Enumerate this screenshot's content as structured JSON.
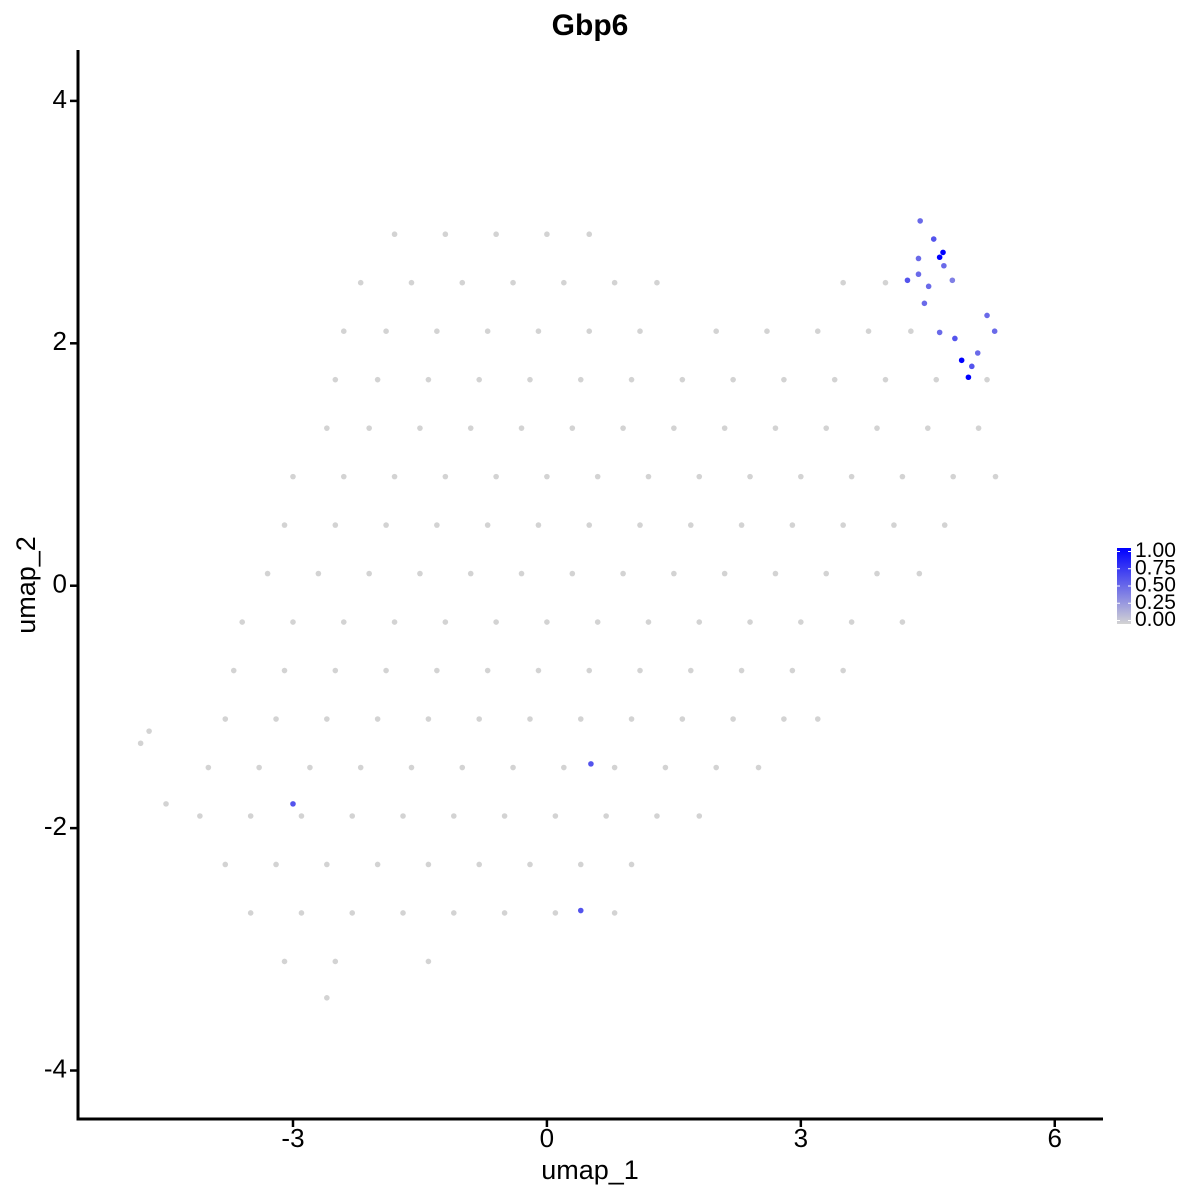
{
  "chart_data": {
    "type": "scatter",
    "title": "Gbp6",
    "x_label": "umap_1",
    "y_label": "umap_2",
    "xlim": [
      -5.54,
      6.57
    ],
    "ylim": [
      -4.4,
      4.42
    ],
    "xticks": [
      -3,
      0,
      3,
      6
    ],
    "yticks": [
      -4,
      -2,
      0,
      2,
      4
    ],
    "low_color": "#d3d3d3",
    "high_color": "#0000ff",
    "clim": [
      0,
      1
    ],
    "cticks": [
      {
        "value": 1,
        "label": "1.00"
      },
      {
        "value": 0.75,
        "label": "0.75"
      },
      {
        "value": 0.5,
        "label": "0.50"
      },
      {
        "value": 0.25,
        "label": "0.25"
      },
      {
        "value": 0,
        "label": "0.00"
      }
    ],
    "points": [
      [
        -1.8,
        2.9,
        0
      ],
      [
        -1.2,
        2.9,
        0
      ],
      [
        -0.6,
        2.9,
        0
      ],
      [
        0,
        2.9,
        0
      ],
      [
        0.5,
        2.9,
        0
      ],
      [
        -2.2,
        2.5,
        0
      ],
      [
        -1.6,
        2.5,
        0
      ],
      [
        -1,
        2.5,
        0
      ],
      [
        -0.4,
        2.5,
        0
      ],
      [
        0.2,
        2.5,
        0
      ],
      [
        0.8,
        2.5,
        0
      ],
      [
        1.3,
        2.5,
        0
      ],
      [
        3.5,
        2.5,
        0
      ],
      [
        4.0,
        2.5,
        0
      ],
      [
        -2.4,
        2.1,
        0
      ],
      [
        -1.9,
        2.1,
        0
      ],
      [
        -1.3,
        2.1,
        0
      ],
      [
        -0.7,
        2.1,
        0
      ],
      [
        -0.1,
        2.1,
        0
      ],
      [
        0.5,
        2.1,
        0
      ],
      [
        1.1,
        2.1,
        0
      ],
      [
        2.0,
        2.1,
        0
      ],
      [
        2.6,
        2.1,
        0
      ],
      [
        3.2,
        2.1,
        0
      ],
      [
        3.8,
        2.1,
        0
      ],
      [
        4.3,
        2.1,
        0
      ],
      [
        -2.5,
        1.7,
        0
      ],
      [
        -2.0,
        1.7,
        0
      ],
      [
        -1.4,
        1.7,
        0
      ],
      [
        -0.8,
        1.7,
        0
      ],
      [
        -0.2,
        1.7,
        0
      ],
      [
        0.4,
        1.7,
        0
      ],
      [
        1.0,
        1.7,
        0
      ],
      [
        1.6,
        1.7,
        0
      ],
      [
        2.2,
        1.7,
        0
      ],
      [
        2.8,
        1.7,
        0
      ],
      [
        3.4,
        1.7,
        0
      ],
      [
        4.0,
        1.7,
        0
      ],
      [
        4.6,
        1.7,
        0
      ],
      [
        5.2,
        1.7,
        0
      ],
      [
        -2.6,
        1.3,
        0
      ],
      [
        -2.1,
        1.3,
        0
      ],
      [
        -1.5,
        1.3,
        0
      ],
      [
        -0.9,
        1.3,
        0
      ],
      [
        -0.3,
        1.3,
        0
      ],
      [
        0.3,
        1.3,
        0
      ],
      [
        0.9,
        1.3,
        0
      ],
      [
        1.5,
        1.3,
        0
      ],
      [
        2.1,
        1.3,
        0
      ],
      [
        2.7,
        1.3,
        0
      ],
      [
        3.3,
        1.3,
        0
      ],
      [
        3.9,
        1.3,
        0
      ],
      [
        4.5,
        1.3,
        0
      ],
      [
        5.1,
        1.3,
        0
      ],
      [
        -3.0,
        0.9,
        0
      ],
      [
        -2.4,
        0.9,
        0
      ],
      [
        -1.8,
        0.9,
        0
      ],
      [
        -1.2,
        0.9,
        0
      ],
      [
        -0.6,
        0.9,
        0
      ],
      [
        0,
        0.9,
        0
      ],
      [
        0.6,
        0.9,
        0
      ],
      [
        1.2,
        0.9,
        0
      ],
      [
        1.8,
        0.9,
        0
      ],
      [
        2.4,
        0.9,
        0
      ],
      [
        3.0,
        0.9,
        0
      ],
      [
        3.6,
        0.9,
        0
      ],
      [
        4.2,
        0.9,
        0
      ],
      [
        4.8,
        0.9,
        0
      ],
      [
        5.3,
        0.9,
        0
      ],
      [
        -3.1,
        0.5,
        0
      ],
      [
        -2.5,
        0.5,
        0
      ],
      [
        -1.9,
        0.5,
        0
      ],
      [
        -1.3,
        0.5,
        0
      ],
      [
        -0.7,
        0.5,
        0
      ],
      [
        -0.1,
        0.5,
        0
      ],
      [
        0.5,
        0.5,
        0
      ],
      [
        1.1,
        0.5,
        0
      ],
      [
        1.7,
        0.5,
        0
      ],
      [
        2.3,
        0.5,
        0
      ],
      [
        2.9,
        0.5,
        0
      ],
      [
        3.5,
        0.5,
        0
      ],
      [
        4.1,
        0.5,
        0
      ],
      [
        4.7,
        0.5,
        0
      ],
      [
        -3.3,
        0.1,
        0
      ],
      [
        -2.7,
        0.1,
        0
      ],
      [
        -2.1,
        0.1,
        0
      ],
      [
        -1.5,
        0.1,
        0
      ],
      [
        -0.9,
        0.1,
        0
      ],
      [
        -0.3,
        0.1,
        0
      ],
      [
        0.3,
        0.1,
        0
      ],
      [
        0.9,
        0.1,
        0
      ],
      [
        1.5,
        0.1,
        0
      ],
      [
        2.1,
        0.1,
        0
      ],
      [
        2.7,
        0.1,
        0
      ],
      [
        3.3,
        0.1,
        0
      ],
      [
        3.9,
        0.1,
        0
      ],
      [
        4.4,
        0.1,
        0
      ],
      [
        -3.6,
        -0.3,
        0
      ],
      [
        -3.0,
        -0.3,
        0
      ],
      [
        -2.4,
        -0.3,
        0
      ],
      [
        -1.8,
        -0.3,
        0
      ],
      [
        -1.2,
        -0.3,
        0
      ],
      [
        -0.6,
        -0.3,
        0
      ],
      [
        0,
        -0.3,
        0
      ],
      [
        0.6,
        -0.3,
        0
      ],
      [
        1.2,
        -0.3,
        0
      ],
      [
        1.8,
        -0.3,
        0
      ],
      [
        2.4,
        -0.3,
        0
      ],
      [
        3.0,
        -0.3,
        0
      ],
      [
        3.6,
        -0.3,
        0
      ],
      [
        4.2,
        -0.3,
        0
      ],
      [
        -3.7,
        -0.7,
        0
      ],
      [
        -3.1,
        -0.7,
        0
      ],
      [
        -2.5,
        -0.7,
        0
      ],
      [
        -1.9,
        -0.7,
        0
      ],
      [
        -1.3,
        -0.7,
        0
      ],
      [
        -0.7,
        -0.7,
        0
      ],
      [
        -0.1,
        -0.7,
        0
      ],
      [
        0.5,
        -0.7,
        0
      ],
      [
        1.1,
        -0.7,
        0
      ],
      [
        1.7,
        -0.7,
        0
      ],
      [
        2.3,
        -0.7,
        0
      ],
      [
        2.9,
        -0.7,
        0
      ],
      [
        3.5,
        -0.7,
        0
      ],
      [
        -3.8,
        -1.1,
        0
      ],
      [
        -3.2,
        -1.1,
        0
      ],
      [
        -2.6,
        -1.1,
        0
      ],
      [
        -2.0,
        -1.1,
        0
      ],
      [
        -1.4,
        -1.1,
        0
      ],
      [
        -0.8,
        -1.1,
        0
      ],
      [
        -0.2,
        -1.1,
        0
      ],
      [
        0.4,
        -1.1,
        0
      ],
      [
        1.0,
        -1.1,
        0
      ],
      [
        1.6,
        -1.1,
        0
      ],
      [
        2.2,
        -1.1,
        0
      ],
      [
        2.8,
        -1.1,
        0
      ],
      [
        3.2,
        -1.1,
        0
      ],
      [
        -4.0,
        -1.5,
        0
      ],
      [
        -3.4,
        -1.5,
        0
      ],
      [
        -2.8,
        -1.5,
        0
      ],
      [
        -2.2,
        -1.5,
        0
      ],
      [
        -1.6,
        -1.5,
        0
      ],
      [
        -1.0,
        -1.5,
        0
      ],
      [
        -0.4,
        -1.5,
        0
      ],
      [
        0.2,
        -1.5,
        0
      ],
      [
        0.8,
        -1.5,
        0
      ],
      [
        1.4,
        -1.5,
        0
      ],
      [
        2.0,
        -1.5,
        0
      ],
      [
        2.5,
        -1.5,
        0
      ],
      [
        -4.1,
        -1.9,
        0
      ],
      [
        -3.5,
        -1.9,
        0
      ],
      [
        -2.9,
        -1.9,
        0
      ],
      [
        -2.3,
        -1.9,
        0
      ],
      [
        -1.7,
        -1.9,
        0
      ],
      [
        -1.1,
        -1.9,
        0
      ],
      [
        -0.5,
        -1.9,
        0
      ],
      [
        0.1,
        -1.9,
        0
      ],
      [
        0.7,
        -1.9,
        0
      ],
      [
        1.3,
        -1.9,
        0
      ],
      [
        1.8,
        -1.9,
        0
      ],
      [
        -3.8,
        -2.3,
        0
      ],
      [
        -3.2,
        -2.3,
        0
      ],
      [
        -2.6,
        -2.3,
        0
      ],
      [
        -2.0,
        -2.3,
        0
      ],
      [
        -1.4,
        -2.3,
        0
      ],
      [
        -0.8,
        -2.3,
        0
      ],
      [
        -0.2,
        -2.3,
        0
      ],
      [
        0.4,
        -2.3,
        0
      ],
      [
        1.0,
        -2.3,
        0
      ],
      [
        -3.5,
        -2.7,
        0
      ],
      [
        -2.9,
        -2.7,
        0
      ],
      [
        -2.3,
        -2.7,
        0
      ],
      [
        -1.7,
        -2.7,
        0
      ],
      [
        -1.1,
        -2.7,
        0
      ],
      [
        -0.5,
        -2.7,
        0
      ],
      [
        0.1,
        -2.7,
        0
      ],
      [
        0.8,
        -2.7,
        0
      ],
      [
        -3.1,
        -3.1,
        0
      ],
      [
        -2.5,
        -3.1,
        0
      ],
      [
        -1.4,
        -3.1,
        0
      ],
      [
        -2.6,
        -3.4,
        0
      ],
      [
        -4.7,
        -1.2,
        0
      ],
      [
        -4.8,
        -1.3,
        0
      ],
      [
        -4.5,
        -1.8,
        0
      ],
      [
        4.41,
        3.01,
        0.5
      ],
      [
        4.57,
        2.86,
        0.6
      ],
      [
        4.64,
        2.71,
        1
      ],
      [
        4.68,
        2.75,
        1
      ],
      [
        4.39,
        2.7,
        0.5
      ],
      [
        4.69,
        2.64,
        0.5
      ],
      [
        4.26,
        2.52,
        0.6
      ],
      [
        4.39,
        2.57,
        0.5
      ],
      [
        4.51,
        2.47,
        0.5
      ],
      [
        4.79,
        2.52,
        0.4
      ],
      [
        4.46,
        2.33,
        0.5
      ],
      [
        4.64,
        2.09,
        0.5
      ],
      [
        4.82,
        2.04,
        0.6
      ],
      [
        4.9,
        1.86,
        1
      ],
      [
        4.98,
        1.72,
        1
      ],
      [
        5.02,
        1.81,
        0.6
      ],
      [
        5.09,
        1.92,
        0.5
      ],
      [
        5.2,
        2.23,
        0.5
      ],
      [
        5.29,
        2.1,
        0.5
      ],
      [
        0.52,
        -1.47,
        0.6
      ],
      [
        -3.0,
        -1.8,
        0.6
      ],
      [
        0.4,
        -2.68,
        0.6
      ]
    ]
  }
}
